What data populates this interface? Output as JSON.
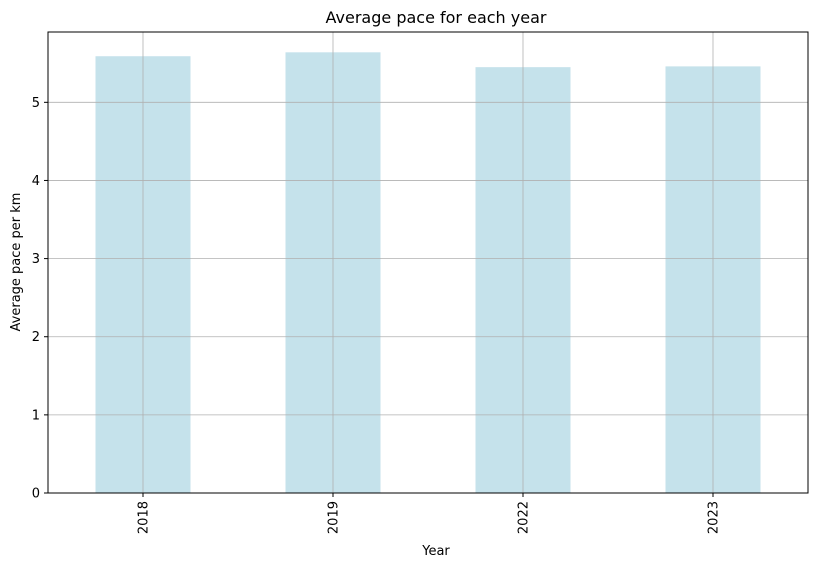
{
  "chart_data": {
    "type": "bar",
    "title": "Average pace for each year",
    "xlabel": "Year",
    "ylabel": "Average pace per km",
    "categories": [
      "2018",
      "2019",
      "2022",
      "2023"
    ],
    "values": [
      5.59,
      5.64,
      5.45,
      5.46
    ],
    "ylim": [
      0,
      5.9
    ],
    "yticks": [
      0,
      1,
      2,
      3,
      4,
      5
    ],
    "ytick_labels": [
      "0",
      "1",
      "2",
      "3",
      "4",
      "5"
    ],
    "grid": true,
    "bar_color": "#c5e2eb",
    "grid_color": "#b0b0b0",
    "axis_color": "#000000"
  }
}
